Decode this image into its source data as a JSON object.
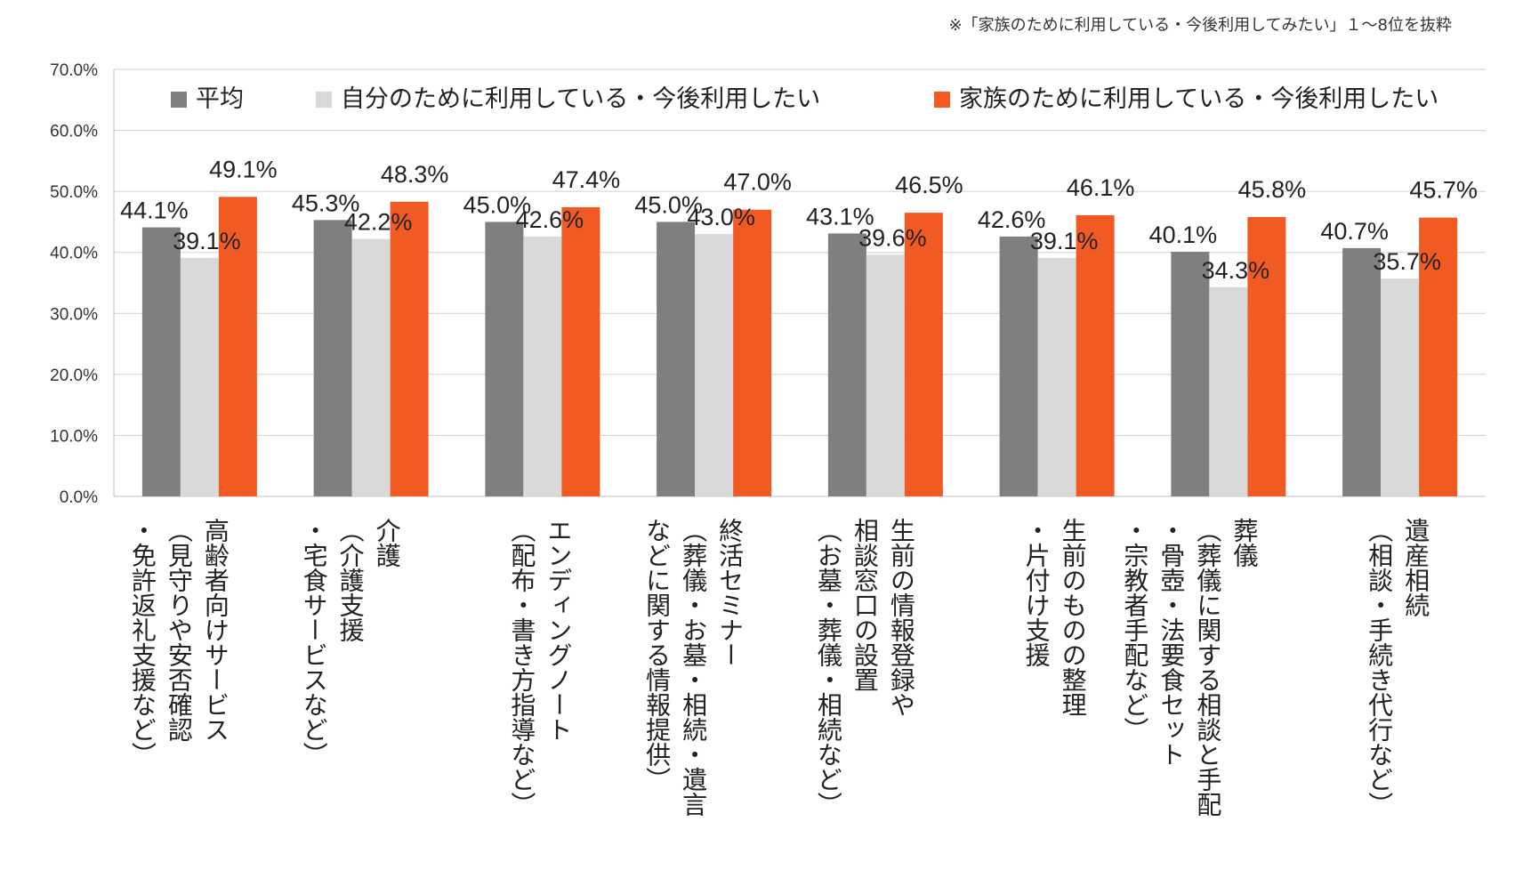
{
  "note": "※「家族のために利用している・今後利用してみたい」１～8位を抜粋",
  "chart_data": {
    "type": "bar",
    "ylim": [
      0,
      70
    ],
    "yticks": [
      "0.0%",
      "10.0%",
      "20.0%",
      "30.0%",
      "40.0%",
      "50.0%",
      "60.0%",
      "70.0%"
    ],
    "grid": true,
    "legend_position": "top",
    "categories": [
      [
        "高齢者向けサービス",
        "（見守りや安否確認",
        "・免許返礼支援など）"
      ],
      [
        "介護",
        "（介護支援",
        "・宅食サービスなど）"
      ],
      [
        "エンディングノート",
        "（配布・書き方指導など）"
      ],
      [
        "終活セミナー",
        "（葬儀・お墓・相続・遺言",
        "などに関する情報提供）"
      ],
      [
        "生前の情報登録や",
        "相談窓口の設置",
        "（お墓・葬儀・相続など）"
      ],
      [
        "生前のものの整理",
        "・片付け支援"
      ],
      [
        "葬儀",
        "（葬儀に関する相談と手配",
        "・骨壺・法要食セット",
        "・宗教者手配など）"
      ],
      [
        "遺産相続",
        "（相談・手続き代行など）"
      ]
    ],
    "series": [
      {
        "name": "平均",
        "color": "#7f7f7f",
        "values": [
          44.1,
          45.3,
          45.0,
          45.0,
          43.1,
          42.6,
          40.1,
          40.7
        ],
        "labels": [
          "44.1%",
          "45.3%",
          "45.0%",
          "45.0%",
          "43.1%",
          "42.6%",
          "40.1%",
          "40.7%"
        ]
      },
      {
        "name": "自分のために利用している・今後利用したい",
        "color": "#d9d9d9",
        "values": [
          39.1,
          42.2,
          42.6,
          43.0,
          39.6,
          39.1,
          34.3,
          35.7
        ],
        "labels": [
          "39.1%",
          "42.2%",
          "42.6%",
          "43.0%",
          "39.6%",
          "39.1%",
          "34.3%",
          "35.7%"
        ]
      },
      {
        "name": "家族のために利用している・今後利用したい",
        "color": "#f15a22",
        "values": [
          49.1,
          48.3,
          47.4,
          47.0,
          46.5,
          46.1,
          45.8,
          45.7
        ],
        "labels": [
          "49.1%",
          "48.3%",
          "47.4%",
          "47.0%",
          "46.5%",
          "46.1%",
          "45.8%",
          "45.7%"
        ]
      }
    ]
  }
}
